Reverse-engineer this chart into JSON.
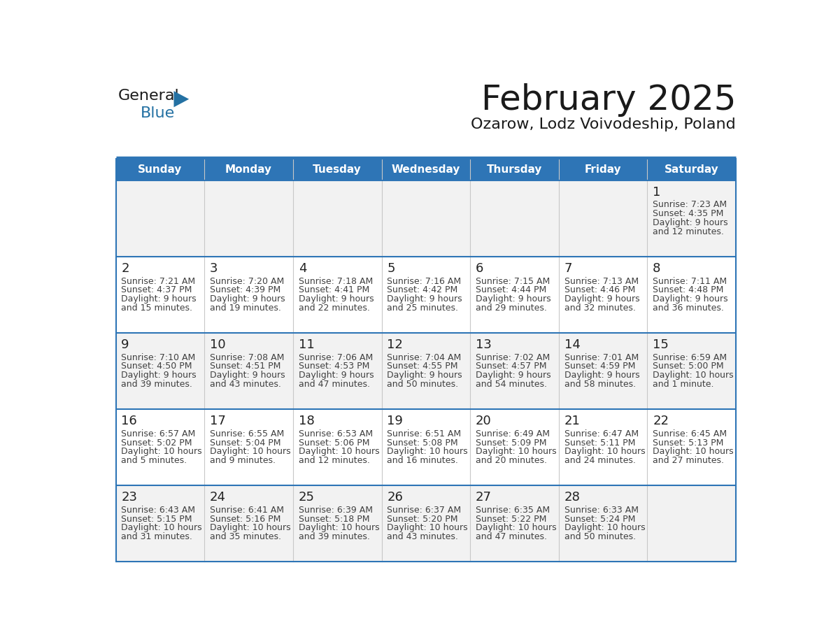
{
  "title": "February 2025",
  "subtitle": "Ozarow, Lodz Voivodeship, Poland",
  "days_of_week": [
    "Sunday",
    "Monday",
    "Tuesday",
    "Wednesday",
    "Thursday",
    "Friday",
    "Saturday"
  ],
  "header_bg": "#2e75b6",
  "header_text": "#ffffff",
  "cell_bg_odd": "#f2f2f2",
  "cell_bg_even": "#ffffff",
  "border_color": "#2e75b6",
  "row_sep_color": "#2e75b6",
  "text_color": "#404040",
  "day_num_color": "#222222",
  "title_color": "#1a1a1a",
  "logo_general_color": "#1a1a1a",
  "logo_blue_color": "#2471a3",
  "calendar": [
    [
      null,
      null,
      null,
      null,
      null,
      null,
      {
        "day": 1,
        "sunrise": "7:23 AM",
        "sunset": "4:35 PM",
        "daylight": "9 hours and 12 minutes."
      }
    ],
    [
      {
        "day": 2,
        "sunrise": "7:21 AM",
        "sunset": "4:37 PM",
        "daylight": "9 hours and 15 minutes."
      },
      {
        "day": 3,
        "sunrise": "7:20 AM",
        "sunset": "4:39 PM",
        "daylight": "9 hours and 19 minutes."
      },
      {
        "day": 4,
        "sunrise": "7:18 AM",
        "sunset": "4:41 PM",
        "daylight": "9 hours and 22 minutes."
      },
      {
        "day": 5,
        "sunrise": "7:16 AM",
        "sunset": "4:42 PM",
        "daylight": "9 hours and 25 minutes."
      },
      {
        "day": 6,
        "sunrise": "7:15 AM",
        "sunset": "4:44 PM",
        "daylight": "9 hours and 29 minutes."
      },
      {
        "day": 7,
        "sunrise": "7:13 AM",
        "sunset": "4:46 PM",
        "daylight": "9 hours and 32 minutes."
      },
      {
        "day": 8,
        "sunrise": "7:11 AM",
        "sunset": "4:48 PM",
        "daylight": "9 hours and 36 minutes."
      }
    ],
    [
      {
        "day": 9,
        "sunrise": "7:10 AM",
        "sunset": "4:50 PM",
        "daylight": "9 hours and 39 minutes."
      },
      {
        "day": 10,
        "sunrise": "7:08 AM",
        "sunset": "4:51 PM",
        "daylight": "9 hours and 43 minutes."
      },
      {
        "day": 11,
        "sunrise": "7:06 AM",
        "sunset": "4:53 PM",
        "daylight": "9 hours and 47 minutes."
      },
      {
        "day": 12,
        "sunrise": "7:04 AM",
        "sunset": "4:55 PM",
        "daylight": "9 hours and 50 minutes."
      },
      {
        "day": 13,
        "sunrise": "7:02 AM",
        "sunset": "4:57 PM",
        "daylight": "9 hours and 54 minutes."
      },
      {
        "day": 14,
        "sunrise": "7:01 AM",
        "sunset": "4:59 PM",
        "daylight": "9 hours and 58 minutes."
      },
      {
        "day": 15,
        "sunrise": "6:59 AM",
        "sunset": "5:00 PM",
        "daylight": "10 hours and 1 minute."
      }
    ],
    [
      {
        "day": 16,
        "sunrise": "6:57 AM",
        "sunset": "5:02 PM",
        "daylight": "10 hours and 5 minutes."
      },
      {
        "day": 17,
        "sunrise": "6:55 AM",
        "sunset": "5:04 PM",
        "daylight": "10 hours and 9 minutes."
      },
      {
        "day": 18,
        "sunrise": "6:53 AM",
        "sunset": "5:06 PM",
        "daylight": "10 hours and 12 minutes."
      },
      {
        "day": 19,
        "sunrise": "6:51 AM",
        "sunset": "5:08 PM",
        "daylight": "10 hours and 16 minutes."
      },
      {
        "day": 20,
        "sunrise": "6:49 AM",
        "sunset": "5:09 PM",
        "daylight": "10 hours and 20 minutes."
      },
      {
        "day": 21,
        "sunrise": "6:47 AM",
        "sunset": "5:11 PM",
        "daylight": "10 hours and 24 minutes."
      },
      {
        "day": 22,
        "sunrise": "6:45 AM",
        "sunset": "5:13 PM",
        "daylight": "10 hours and 27 minutes."
      }
    ],
    [
      {
        "day": 23,
        "sunrise": "6:43 AM",
        "sunset": "5:15 PM",
        "daylight": "10 hours and 31 minutes."
      },
      {
        "day": 24,
        "sunrise": "6:41 AM",
        "sunset": "5:16 PM",
        "daylight": "10 hours and 35 minutes."
      },
      {
        "day": 25,
        "sunrise": "6:39 AM",
        "sunset": "5:18 PM",
        "daylight": "10 hours and 39 minutes."
      },
      {
        "day": 26,
        "sunrise": "6:37 AM",
        "sunset": "5:20 PM",
        "daylight": "10 hours and 43 minutes."
      },
      {
        "day": 27,
        "sunrise": "6:35 AM",
        "sunset": "5:22 PM",
        "daylight": "10 hours and 47 minutes."
      },
      {
        "day": 28,
        "sunrise": "6:33 AM",
        "sunset": "5:24 PM",
        "daylight": "10 hours and 50 minutes."
      },
      null
    ]
  ]
}
